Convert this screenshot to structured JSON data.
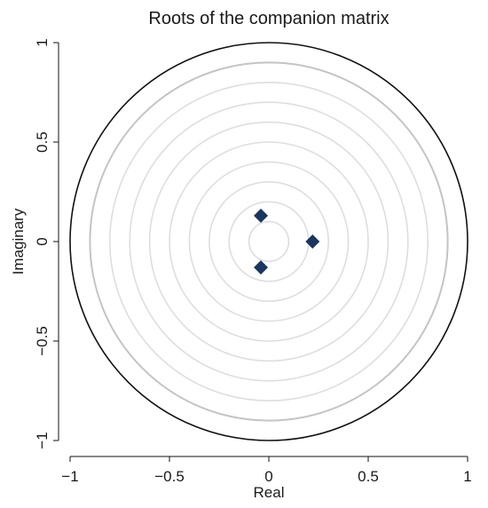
{
  "chart_data": {
    "type": "scatter",
    "title": "Roots of the companion matrix",
    "xlabel": "Real",
    "ylabel": "Imaginary",
    "xlim": [
      -1,
      1
    ],
    "ylim": [
      -1,
      1
    ],
    "x_ticks": [
      -1,
      -0.5,
      0,
      0.5,
      1
    ],
    "x_tick_labels": [
      "−1",
      "−0.5",
      "0",
      "0.5",
      "1"
    ],
    "y_ticks": [
      -1,
      -0.5,
      0,
      0.5,
      1
    ],
    "y_tick_labels": [
      "−1",
      "−0.5",
      "0",
      "0.5",
      "1"
    ],
    "unit_circle": true,
    "reference_circles": [
      0.1,
      0.2,
      0.3,
      0.4,
      0.5,
      0.6,
      0.7,
      0.8,
      0.9
    ],
    "grid": false,
    "marker": "diamond",
    "marker_color": "#1a3760",
    "points": [
      {
        "x": -0.04,
        "y": 0.13
      },
      {
        "x": -0.04,
        "y": -0.13
      },
      {
        "x": 0.22,
        "y": 0.0
      }
    ]
  }
}
